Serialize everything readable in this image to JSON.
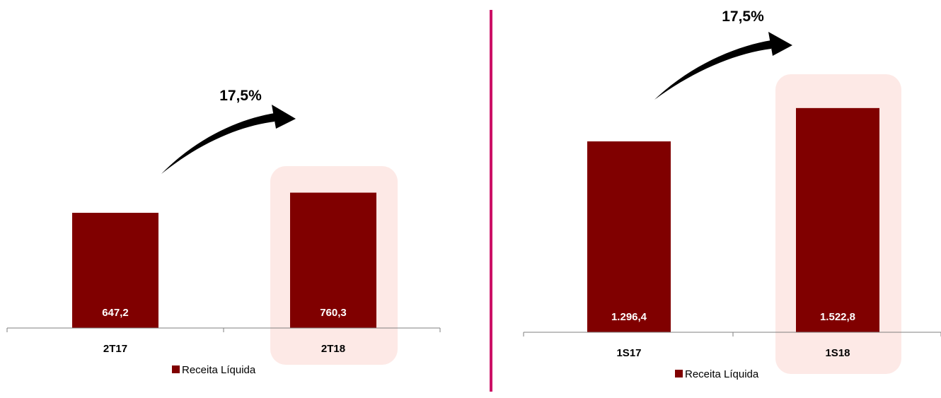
{
  "colors": {
    "bar": "#800000",
    "highlight": "#fde9e6",
    "divider": "#cc1166",
    "axis": "#7f7f7f",
    "arrow": "#000000",
    "bar_label": "#ffffff",
    "text": "#000000"
  },
  "chart_data": [
    {
      "type": "bar",
      "categories": [
        "2T17",
        "2T18"
      ],
      "series": [
        {
          "name": "Receita Líquida",
          "values": [
            647.2,
            760.3
          ]
        }
      ],
      "value_labels": [
        "647,2",
        "760,3"
      ],
      "growth_label": "17,5%",
      "highlighted_category": "2T18",
      "legend_position": "bottom",
      "grid": false
    },
    {
      "type": "bar",
      "categories": [
        "1S17",
        "1S18"
      ],
      "series": [
        {
          "name": "Receita Líquida",
          "values": [
            1296.4,
            1522.8
          ]
        }
      ],
      "value_labels": [
        "1.296,4",
        "1.522,8"
      ],
      "growth_label": "17,5%",
      "highlighted_category": "1S18",
      "legend_position": "bottom",
      "grid": false
    }
  ]
}
